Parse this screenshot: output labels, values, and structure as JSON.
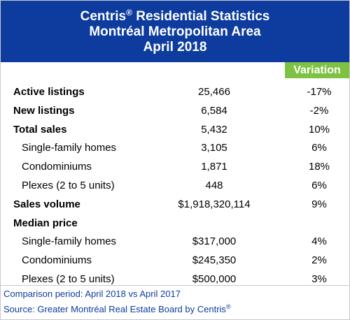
{
  "header": {
    "title_lines": [
      {
        "parts": [
          "Centris",
          "®",
          " Residential Statistics"
        ]
      },
      {
        "parts": [
          "Montréal Metropolitan Area"
        ]
      },
      {
        "parts": [
          "April 2018"
        ]
      }
    ]
  },
  "table": {
    "variation_header": "Variation",
    "rows": [
      [
        "Active listings",
        "25,466",
        "-17%"
      ],
      [
        "New listings",
        "6,584",
        "-2%"
      ],
      [
        "Total sales",
        "5,432",
        "10%"
      ],
      [
        "Single-family homes",
        "3,105",
        "6%"
      ],
      [
        "Condominiums",
        "1,871",
        "18%"
      ],
      [
        "Plexes (2 to 5 units)",
        "448",
        "6%"
      ],
      [
        "Sales volume",
        "$1,918,320,114",
        "9%"
      ],
      [
        "Median price"
      ],
      [
        "Single-family homes",
        "$317,000",
        "4%"
      ],
      [
        "Condominiums",
        "$245,350",
        "2%"
      ],
      [
        "Plexes (2 to 5 units)",
        "$500,000",
        "3%"
      ]
    ]
  },
  "footer": {
    "comparison": "Comparison period: April 2018 vs April 2017",
    "source": [
      "Source: Greater Montréal Real Estate Board by Centris",
      "®"
    ]
  }
}
